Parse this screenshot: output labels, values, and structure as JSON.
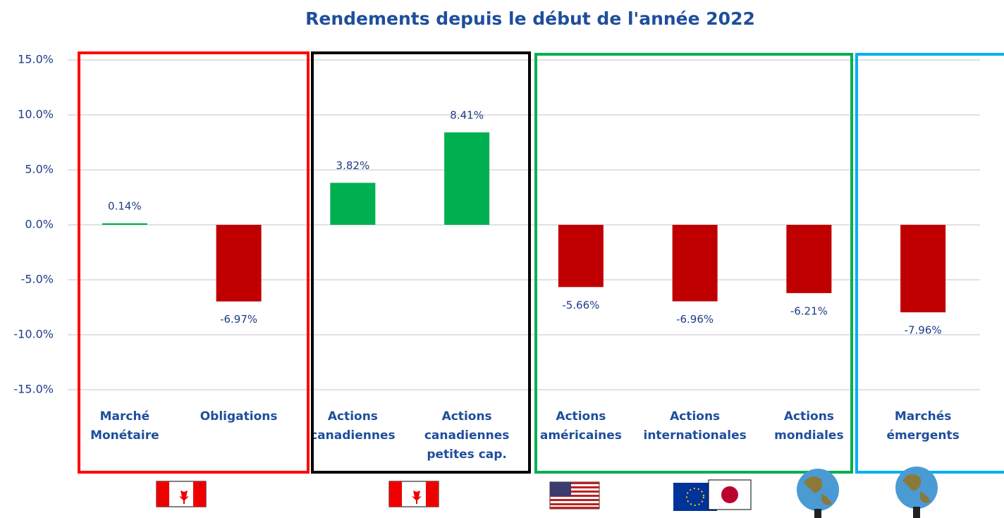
{
  "chart_data": {
    "type": "bar",
    "title": "Rendements depuis le début de l'année 2022",
    "categories": [
      [
        "Marché",
        "Monétaire"
      ],
      [
        "Obligations"
      ],
      [
        "Actions",
        "canadiennes"
      ],
      [
        "Actions",
        "canadiennes",
        "petites cap."
      ],
      [
        "Actions",
        "américaines"
      ],
      [
        "Actions",
        "internationales"
      ],
      [
        "Actions",
        "mondiales"
      ],
      [
        "Marchés",
        "émergents"
      ]
    ],
    "values": [
      0.14,
      -6.97,
      3.82,
      8.41,
      -5.66,
      -6.96,
      -6.21,
      -7.96
    ],
    "value_labels": [
      "0.14%",
      "-6.97%",
      "3.82%",
      "8.41%",
      "-5.66%",
      "-6.96%",
      "-6.21%",
      "-7.96%"
    ],
    "colors": [
      "#00b050",
      "#c00000",
      "#00b050",
      "#00b050",
      "#c00000",
      "#c00000",
      "#c00000",
      "#c00000"
    ],
    "ylim": [
      -15,
      15
    ],
    "yticks": [
      {
        "value": -15,
        "label": "-15.0%"
      },
      {
        "value": -10,
        "label": "-10.0%"
      },
      {
        "value": -5,
        "label": "-5.0%"
      },
      {
        "value": 0,
        "label": "0.0%"
      },
      {
        "value": 5,
        "label": "5.0%"
      },
      {
        "value": 10,
        "label": "10.0%"
      },
      {
        "value": 15,
        "label": "15.0%"
      }
    ],
    "grid": true
  }
}
